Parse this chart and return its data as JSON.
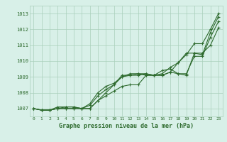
{
  "x": [
    0,
    1,
    2,
    3,
    4,
    5,
    6,
    7,
    8,
    9,
    10,
    11,
    12,
    13,
    14,
    15,
    16,
    17,
    18,
    19,
    20,
    21,
    22,
    23
  ],
  "line1": [
    1007.0,
    1006.9,
    1006.9,
    1007.0,
    1007.0,
    1007.0,
    1007.0,
    1007.0,
    1007.5,
    1008.0,
    1008.5,
    1009.0,
    1009.1,
    1009.1,
    1009.2,
    1009.1,
    1009.1,
    1009.3,
    1009.9,
    1010.4,
    1011.1,
    1011.1,
    1012.0,
    1013.0
  ],
  "line2": [
    1007.0,
    1006.9,
    1006.9,
    1007.0,
    1007.0,
    1007.0,
    1007.0,
    1007.2,
    1007.8,
    1008.2,
    1008.5,
    1009.1,
    1009.1,
    1009.2,
    1009.1,
    1009.1,
    1009.2,
    1009.6,
    1009.9,
    1010.5,
    1010.5,
    1010.4,
    1011.8,
    1012.8
  ],
  "line3": [
    1007.0,
    1006.9,
    1006.9,
    1007.0,
    1007.1,
    1007.1,
    1007.0,
    1007.3,
    1008.0,
    1008.4,
    1008.6,
    1009.0,
    1009.2,
    1009.2,
    1009.2,
    1009.1,
    1009.1,
    1009.3,
    1009.2,
    1009.1,
    1010.5,
    1010.5,
    1011.0,
    1012.1
  ],
  "line4": [
    1007.0,
    1006.9,
    1006.9,
    1007.1,
    1007.1,
    1007.1,
    1007.0,
    1007.0,
    1007.5,
    1007.8,
    1008.1,
    1008.4,
    1008.5,
    1008.5,
    1009.1,
    1009.1,
    1009.4,
    1009.5,
    1009.2,
    1009.2,
    1010.3,
    1010.3,
    1011.5,
    1012.5
  ],
  "ylim_min": 1006.5,
  "ylim_max": 1013.5,
  "yticks": [
    1007,
    1008,
    1009,
    1010,
    1011,
    1012,
    1013
  ],
  "xticks": [
    0,
    1,
    2,
    3,
    4,
    5,
    6,
    7,
    8,
    9,
    10,
    11,
    12,
    13,
    14,
    15,
    16,
    17,
    18,
    19,
    20,
    21,
    22,
    23
  ],
  "xlabel": "Graphe pression niveau de la mer (hPa)",
  "line_color": "#2d6a2d",
  "bg_color": "#d8f0e8",
  "grid_color": "#aacfbb",
  "marker": "+",
  "markersize": 3,
  "linewidth": 0.8
}
